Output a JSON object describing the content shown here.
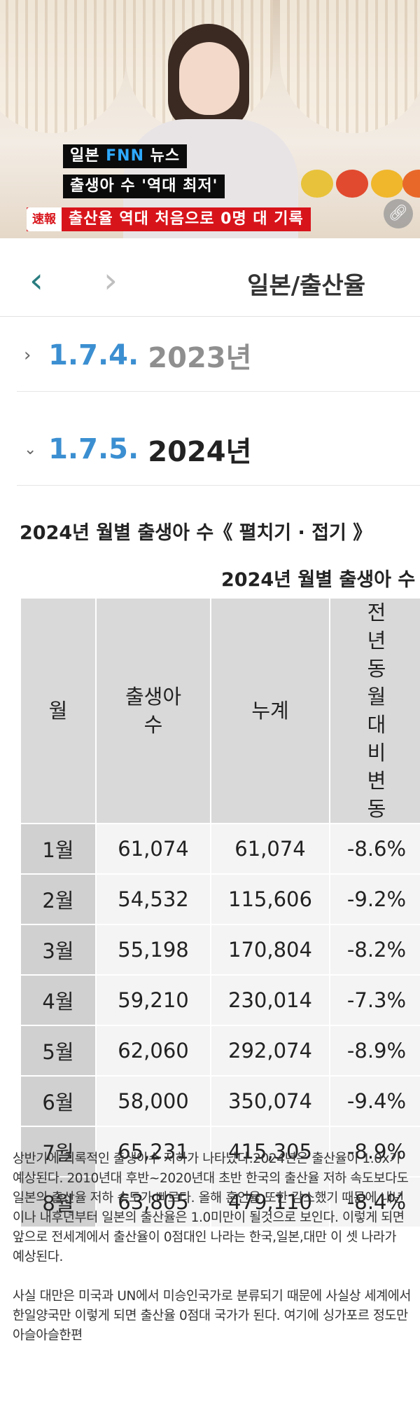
{
  "news": {
    "ticker1_pre": "일본 ",
    "ticker1_highlight": "FNN",
    "ticker1_post": " 뉴스",
    "ticker2": "출생아 수 '역대 최저'",
    "badge": "速報",
    "ticker3": "출산율 역대 처음으로 0명 대 기록",
    "link_icon": "link-icon"
  },
  "nav": {
    "back_icon": "chevron-left-icon",
    "forward_icon": "chevron-right-icon",
    "title": "일본/출산율"
  },
  "sections": [
    {
      "number": "1.7.4.",
      "year": "2023년",
      "state": "collapsed"
    },
    {
      "number": "1.7.5.",
      "year": "2024년",
      "state": "expanded"
    }
  ],
  "table_caption": "2024년 월별 출생아 수《 펼치기 · 접기 》",
  "table_caption2": "2024년 월별 출생아 수",
  "table": {
    "headers": [
      "월",
      "출생아 수",
      "누계",
      "전년 동월 대비 변동"
    ],
    "rows": [
      [
        "1월",
        "61,074",
        "61,074",
        "-8.6%"
      ],
      [
        "2월",
        "54,532",
        "115,606",
        "-9.2%"
      ],
      [
        "3월",
        "55,198",
        "170,804",
        "-8.2%"
      ],
      [
        "4월",
        "59,210",
        "230,014",
        "-7.3%"
      ],
      [
        "5월",
        "62,060",
        "292,074",
        "-8.9%"
      ],
      [
        "6월",
        "58,000",
        "350,074",
        "-9.4%"
      ],
      [
        "7월",
        "65,231",
        "415,305",
        "-8.9%"
      ],
      [
        "8월",
        "63,805",
        "479,110",
        "-8.4%"
      ]
    ]
  },
  "comment": [
    "상반기에 기록적인 출생아수 저하가 나타났다.2024년은 출산율이 1.0x가 예상된다. 2010년대 후반~2020년대 초반 한국의 출산율 저하 속도보다도 일본의 출산율 저하 속도가 빠르다. 올해 혼인율 또한 감소했기 때문에 내년이나 내후년부터 일본의 출산율은 1.0미만이 될것으로 보인다. 이렇게 되면 앞으로 전세계에서 출산율이 0점대인 나라는 한국,일본,대만 이 셋 나라가 예상된다.",
    "사실 대만은 미국과 UN에서 미승인국가로 분류되기 때문에 사실상 세계에서 한일양국만 이렇게 되면 출산율 0점대 국가가 된다. 여기에 싱가포르 정도만 아슬아슬한편"
  ]
}
